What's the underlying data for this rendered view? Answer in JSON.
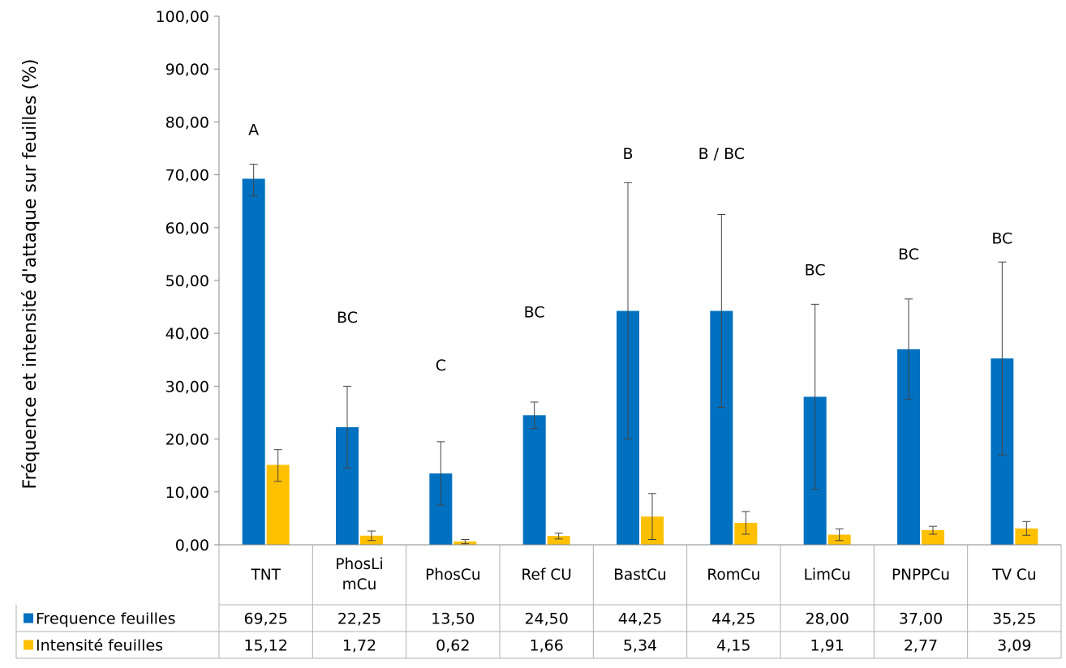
{
  "chart_data": {
    "type": "bar",
    "ylabel": "Fréquence et intensité d'attaque sur feuilles (%)",
    "ylim": [
      0,
      100
    ],
    "y_ticks": [
      "0,00",
      "10,00",
      "20,00",
      "30,00",
      "40,00",
      "50,00",
      "60,00",
      "70,00",
      "80,00",
      "90,00",
      "100,00"
    ],
    "categories": [
      [
        "TNT"
      ],
      [
        "PhosLi",
        "mCu"
      ],
      [
        "PhosCu"
      ],
      [
        "Ref CU"
      ],
      [
        "BastCu"
      ],
      [
        "RomCu"
      ],
      [
        "LimCu"
      ],
      [
        "PNPPCu"
      ],
      [
        "TV Cu"
      ]
    ],
    "series": [
      {
        "name": "Frequence feuilles",
        "color": "#0070C0",
        "values": [
          69.25,
          22.25,
          13.5,
          24.5,
          44.25,
          44.25,
          28.0,
          37.0,
          35.25
        ],
        "display_values": [
          "69,25",
          "22,25",
          "13,50",
          "24,50",
          "44,25",
          "44,25",
          "28,00",
          "37,00",
          "35,25"
        ],
        "err_low": [
          66.0,
          14.5,
          7.5,
          22.0,
          20.0,
          26.0,
          10.5,
          27.5,
          17.0
        ],
        "err_high": [
          72.0,
          30.0,
          19.5,
          27.0,
          68.5,
          62.5,
          45.5,
          46.5,
          53.5
        ]
      },
      {
        "name": "Intensité feuilles",
        "color": "#FFC000",
        "values": [
          15.12,
          1.72,
          0.62,
          1.66,
          5.34,
          4.15,
          1.91,
          2.77,
          3.09
        ],
        "display_values": [
          "15,12",
          "1,72",
          "0,62",
          "1,66",
          "5,34",
          "4,15",
          "1,91",
          "2,77",
          "3,09"
        ],
        "err_low": [
          12.0,
          0.8,
          0.2,
          1.1,
          1.0,
          2.0,
          0.8,
          2.0,
          1.8
        ],
        "err_high": [
          18.0,
          2.6,
          1.0,
          2.2,
          9.7,
          6.3,
          3.0,
          3.5,
          4.4
        ]
      }
    ],
    "significance_letters": [
      {
        "label": "A",
        "y": 77.5
      },
      {
        "label": "BC",
        "y": 42.0
      },
      {
        "label": "C",
        "y": 33.0
      },
      {
        "label": "BC",
        "y": 43.0
      },
      {
        "label": "B",
        "y": 73.0
      },
      {
        "label": "B / BC",
        "y": 73.0
      },
      {
        "label": "BC",
        "y": 51.0
      },
      {
        "label": "BC",
        "y": 54.0
      },
      {
        "label": "BC",
        "y": 57.0
      }
    ],
    "grid": false,
    "legend": "data table below chart"
  }
}
